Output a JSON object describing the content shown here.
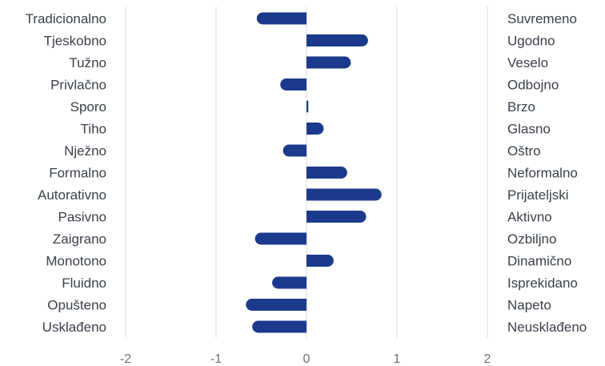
{
  "chart_data": {
    "type": "bar",
    "orientation": "horizontal",
    "categories_left": [
      "Tradicionalno",
      "Tjeskobno",
      "Tužno",
      "Privlačno",
      "Sporo",
      "Tiho",
      "Nježno",
      "Formalno",
      "Autorativno",
      "Pasivno",
      "Zaigrano",
      "Monotono",
      "Fluidno",
      "Opušteno",
      "Usklađeno"
    ],
    "categories_right": [
      "Suvremeno",
      "Ugodno",
      "Veselo",
      "Odbojno",
      "Brzo",
      "Glasno",
      "Oštro",
      "Neformalno",
      "Prijateljski",
      "Aktivno",
      "Ozbiljno",
      "Dinamično",
      "Isprekidano",
      "Napeto",
      "Neusklađeno"
    ],
    "values": [
      -0.55,
      0.68,
      0.49,
      -0.29,
      0.02,
      0.19,
      -0.26,
      0.45,
      0.83,
      0.66,
      -0.57,
      0.3,
      -0.38,
      -0.67,
      -0.6
    ],
    "xlim": [
      -2,
      2
    ],
    "xticks": [
      "-2",
      "-1",
      "0",
      "1",
      "2"
    ],
    "grid": true,
    "bar_color": "#1b3a8c",
    "grid_color": "#d6dce6",
    "title": "",
    "xlabel": "",
    "ylabel": ""
  }
}
